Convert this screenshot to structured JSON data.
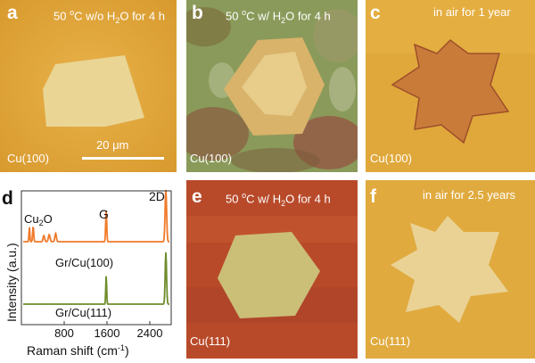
{
  "panels": [
    {
      "id": "a",
      "label": "a",
      "caption_pre": "50 ",
      "caption_sup": "o",
      "caption_mid": "C w/o H",
      "caption_sub": "2",
      "caption_post": "O for 4 h",
      "substrate": "Cu(100)",
      "scalebar": "20 μm"
    },
    {
      "id": "b",
      "label": "b",
      "caption_pre": "50 ",
      "caption_sup": "o",
      "caption_mid": "C w/ H",
      "caption_sub": "2",
      "caption_post": "O for 4 h",
      "substrate": "Cu(100)"
    },
    {
      "id": "c",
      "label": "c",
      "caption_pre": "in air for 1 year",
      "substrate": "Cu(100)"
    },
    {
      "id": "e",
      "label": "e",
      "caption_pre": "50 ",
      "caption_sup": "o",
      "caption_mid": "C w/ H",
      "caption_sub": "2",
      "caption_post": "O for 4 h",
      "substrate": "Cu(111)"
    },
    {
      "id": "f",
      "label": "f",
      "caption_pre": "in air for 2.5 years",
      "substrate": "Cu(111)"
    }
  ],
  "chart_data": {
    "type": "line",
    "label": "d",
    "xlabel_pre": "Raman shift (cm",
    "xlabel_sup": "-1",
    "xlabel_post": ")",
    "ylabel": "Intensity (a.u.)",
    "xlim": [
      0,
      2800
    ],
    "xticks": [
      800,
      1600,
      2400
    ],
    "xtick_labels": [
      "800",
      "1600",
      "2400"
    ],
    "annotations": {
      "cu2o_pre": "Cu",
      "cu2o_sub": "2",
      "cu2o_post": "O",
      "g": "G",
      "twod": "2D"
    },
    "series": [
      {
        "name": "Gr/Cu(100)",
        "color": "#f07a2a",
        "offset": 1.0,
        "peaks": [
          [
            150,
            0.28,
            12
          ],
          [
            220,
            0.3,
            14
          ],
          [
            420,
            0.12,
            20
          ],
          [
            520,
            0.14,
            22
          ],
          [
            640,
            0.16,
            20
          ],
          [
            1585,
            0.6,
            14
          ],
          [
            2700,
            1.0,
            20
          ]
        ]
      },
      {
        "name": "Gr/Cu(111)",
        "color": "#6f8c2a",
        "offset": 0.0,
        "peaks": [
          [
            1585,
            0.55,
            12
          ],
          [
            2700,
            1.0,
            18
          ]
        ]
      }
    ]
  }
}
